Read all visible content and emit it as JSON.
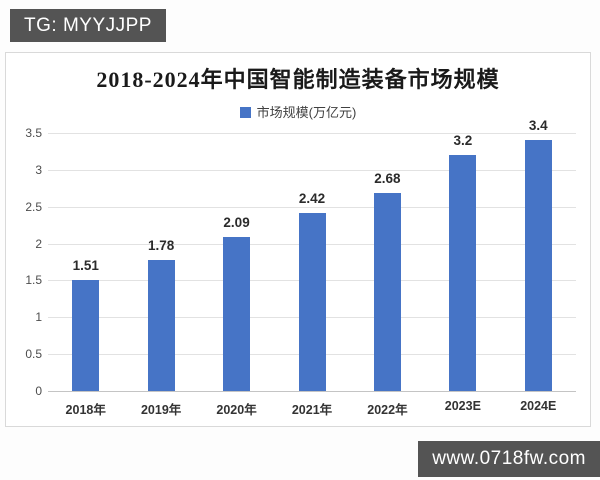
{
  "badges": {
    "top_left": "TG: MYYJJPP",
    "bottom_right": "www.0718fw.com"
  },
  "chart_data": {
    "type": "bar",
    "title": "2018-2024年中国智能制造装备市场规模",
    "legend": "市场规模(万亿元)",
    "legend_position": "top-center",
    "categories": [
      "2018年",
      "2019年",
      "2020年",
      "2021年",
      "2022年",
      "2023E",
      "2024E"
    ],
    "values": [
      1.51,
      1.78,
      2.09,
      2.42,
      2.68,
      3.2,
      3.4
    ],
    "data_labels": [
      "1.51",
      "1.78",
      "2.09",
      "2.42",
      "2.68",
      "3.2",
      "3.4"
    ],
    "xlabel": "",
    "ylabel": "",
    "ylim": [
      0,
      3.5
    ],
    "ytick_step": 0.5,
    "yticks": [
      "0",
      "0.5",
      "1",
      "1.5",
      "2",
      "2.5",
      "3",
      "3.5"
    ],
    "grid": true,
    "bar_color": "#4674C6"
  }
}
